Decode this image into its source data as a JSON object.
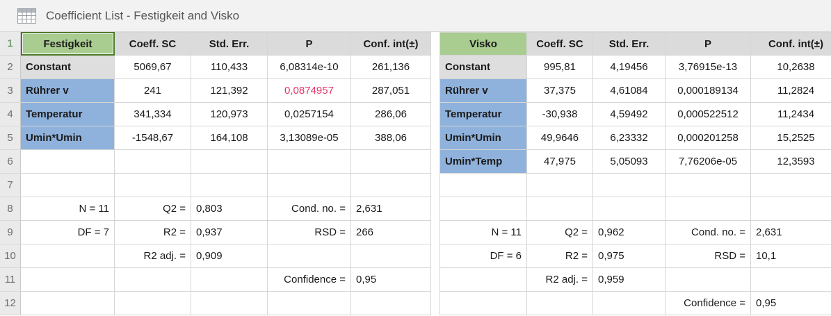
{
  "title": {
    "label": "Coefficient List - Festigkeit and Visko",
    "icon": "table-grid-icon"
  },
  "colors": {
    "response_green_bg": "#a9cc90",
    "selection_border_green": "#4e7a2b",
    "factor_blue_bg": "#8fb2dc",
    "constant_gray_bg": "#dedede",
    "header_gray_bg": "#dbdbdb",
    "significant_red_p": "#e43568",
    "gridline": "#d6d6d6",
    "row_number_selected_green": "#3e7b3e"
  },
  "row_numbers": [
    "1",
    "2",
    "3",
    "4",
    "5",
    "6",
    "7",
    "8",
    "9",
    "10",
    "11",
    "12"
  ],
  "columns": [
    "Coeff. SC",
    "Std. Err.",
    "P",
    "Conf. int(±)"
  ],
  "tables": [
    {
      "name": "Festigkeit",
      "selected": true,
      "coefficients": [
        {
          "term": "Constant",
          "coeff": "5069,67",
          "std_err": "110,433",
          "p": "6,08314e-10",
          "p_red": false,
          "conf": "261,136"
        },
        {
          "term": "Rührer v",
          "coeff": "241",
          "std_err": "121,392",
          "p": "0,0874957",
          "p_red": true,
          "conf": "287,051"
        },
        {
          "term": "Temperatur",
          "coeff": "341,334",
          "std_err": "120,973",
          "p": "0,0257154",
          "p_red": false,
          "conf": "286,06"
        },
        {
          "term": "Umin*Umin",
          "coeff": "-1548,67",
          "std_err": "164,108",
          "p": "3,13089e-05",
          "p_red": false,
          "conf": "388,06"
        }
      ],
      "stats_start_row": 8,
      "stats": [
        {
          "c0": "N = 11",
          "c1": "Q2 =",
          "c2": "0,803",
          "c3": "Cond. no. =",
          "c4": "2,631"
        },
        {
          "c0": "DF = 7",
          "c1": "R2 =",
          "c2": "0,937",
          "c3": "RSD =",
          "c4": "266"
        },
        {
          "c0": "",
          "c1": "R2 adj. =",
          "c2": "0,909",
          "c3": "",
          "c4": ""
        },
        {
          "c0": "",
          "c1": "",
          "c2": "",
          "c3": "Confidence =",
          "c4": "0,95"
        }
      ]
    },
    {
      "name": "Visko",
      "selected": false,
      "coefficients": [
        {
          "term": "Constant",
          "coeff": "995,81",
          "std_err": "4,19456",
          "p": "3,76915e-13",
          "p_red": false,
          "conf": "10,2638"
        },
        {
          "term": "Rührer v",
          "coeff": "37,375",
          "std_err": "4,61084",
          "p": "0,000189134",
          "p_red": false,
          "conf": "11,2824"
        },
        {
          "term": "Temperatur",
          "coeff": "-30,938",
          "std_err": "4,59492",
          "p": "0,000522512",
          "p_red": false,
          "conf": "11,2434"
        },
        {
          "term": "Umin*Umin",
          "coeff": "49,9646",
          "std_err": "6,23332",
          "p": "0,000201258",
          "p_red": false,
          "conf": "15,2525"
        },
        {
          "term": "Umin*Temp",
          "coeff": "47,975",
          "std_err": "5,05093",
          "p": "7,76206e-05",
          "p_red": false,
          "conf": "12,3593"
        }
      ],
      "stats_start_row": 9,
      "stats": [
        {
          "c0": "N = 11",
          "c1": "Q2 =",
          "c2": "0,962",
          "c3": "Cond. no. =",
          "c4": "2,631"
        },
        {
          "c0": "DF = 6",
          "c1": "R2 =",
          "c2": "0,975",
          "c3": "RSD =",
          "c4": "10,1"
        },
        {
          "c0": "",
          "c1": "R2 adj. =",
          "c2": "0,959",
          "c3": "",
          "c4": ""
        },
        {
          "c0": "",
          "c1": "",
          "c2": "",
          "c3": "Confidence =",
          "c4": "0,95"
        }
      ]
    }
  ]
}
